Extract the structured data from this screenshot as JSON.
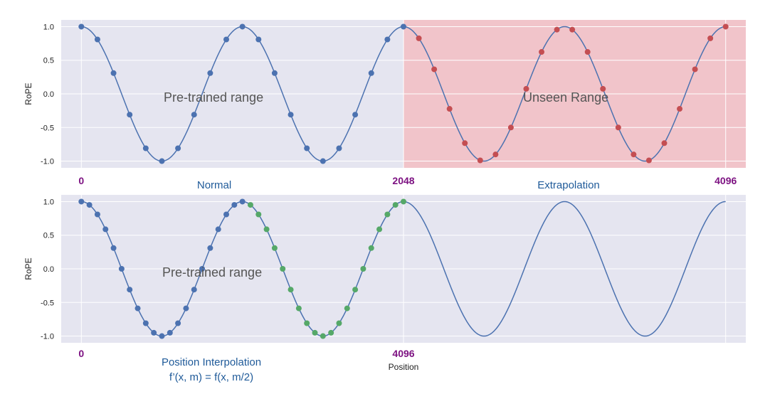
{
  "colors": {
    "background": "#e5e5f0",
    "grid": "#ffffff",
    "line": "#4c72b0",
    "dot_normal": "#4c72b0",
    "dot_extrapolation": "#c44e52",
    "dot_interpolated": "#55a868",
    "unseen_fill": "#f4b8be",
    "marker_text": "#7d1282",
    "caption_text": "#1f5a99",
    "annotation_text": "#555555"
  },
  "chart_data": [
    {
      "type": "line",
      "ylabel": "RoPE",
      "xlim": [
        -0.25,
        8.25
      ],
      "ylim": [
        -1.1,
        1.1
      ],
      "yticks": [
        "1.0",
        "0.5",
        "0.0",
        "-0.5",
        "-1.0"
      ],
      "curve": "cos(x)",
      "annotations": {
        "left": "Pre-trained range",
        "right": "Unseen Range"
      },
      "position_marks": [
        "0",
        "2048",
        "4096"
      ],
      "region_labels": [
        "Normal",
        "Extrapolation"
      ],
      "shaded_region": [
        4,
        8.25
      ],
      "series": [
        {
          "style": "dots",
          "color": "normal",
          "x_start": 0,
          "x_end": 4,
          "count": 21
        },
        {
          "style": "dots",
          "color": "extrapolation",
          "x_start": 4,
          "x_end": 8,
          "count": 21
        }
      ]
    },
    {
      "type": "line",
      "ylabel": "RoPE",
      "xlabel": "Position",
      "xlim": [
        -0.25,
        8.25
      ],
      "ylim": [
        -1.1,
        1.1
      ],
      "yticks": [
        "1.0",
        "0.5",
        "0.0",
        "-0.5",
        "-1.0"
      ],
      "curve": "cos(x)",
      "annotations": {
        "left": "Pre-trained range"
      },
      "position_marks": [
        "0",
        "4096"
      ],
      "caption_lines": [
        "Position Interpolation",
        "f’(x, m) = f(x, m/2)"
      ],
      "series": [
        {
          "style": "dots",
          "color": "normal",
          "x_start": 0,
          "x_end": 2,
          "count": 21
        },
        {
          "style": "dots",
          "color": "interpolated",
          "x_start": 2,
          "x_end": 4,
          "count": 20
        }
      ]
    }
  ]
}
